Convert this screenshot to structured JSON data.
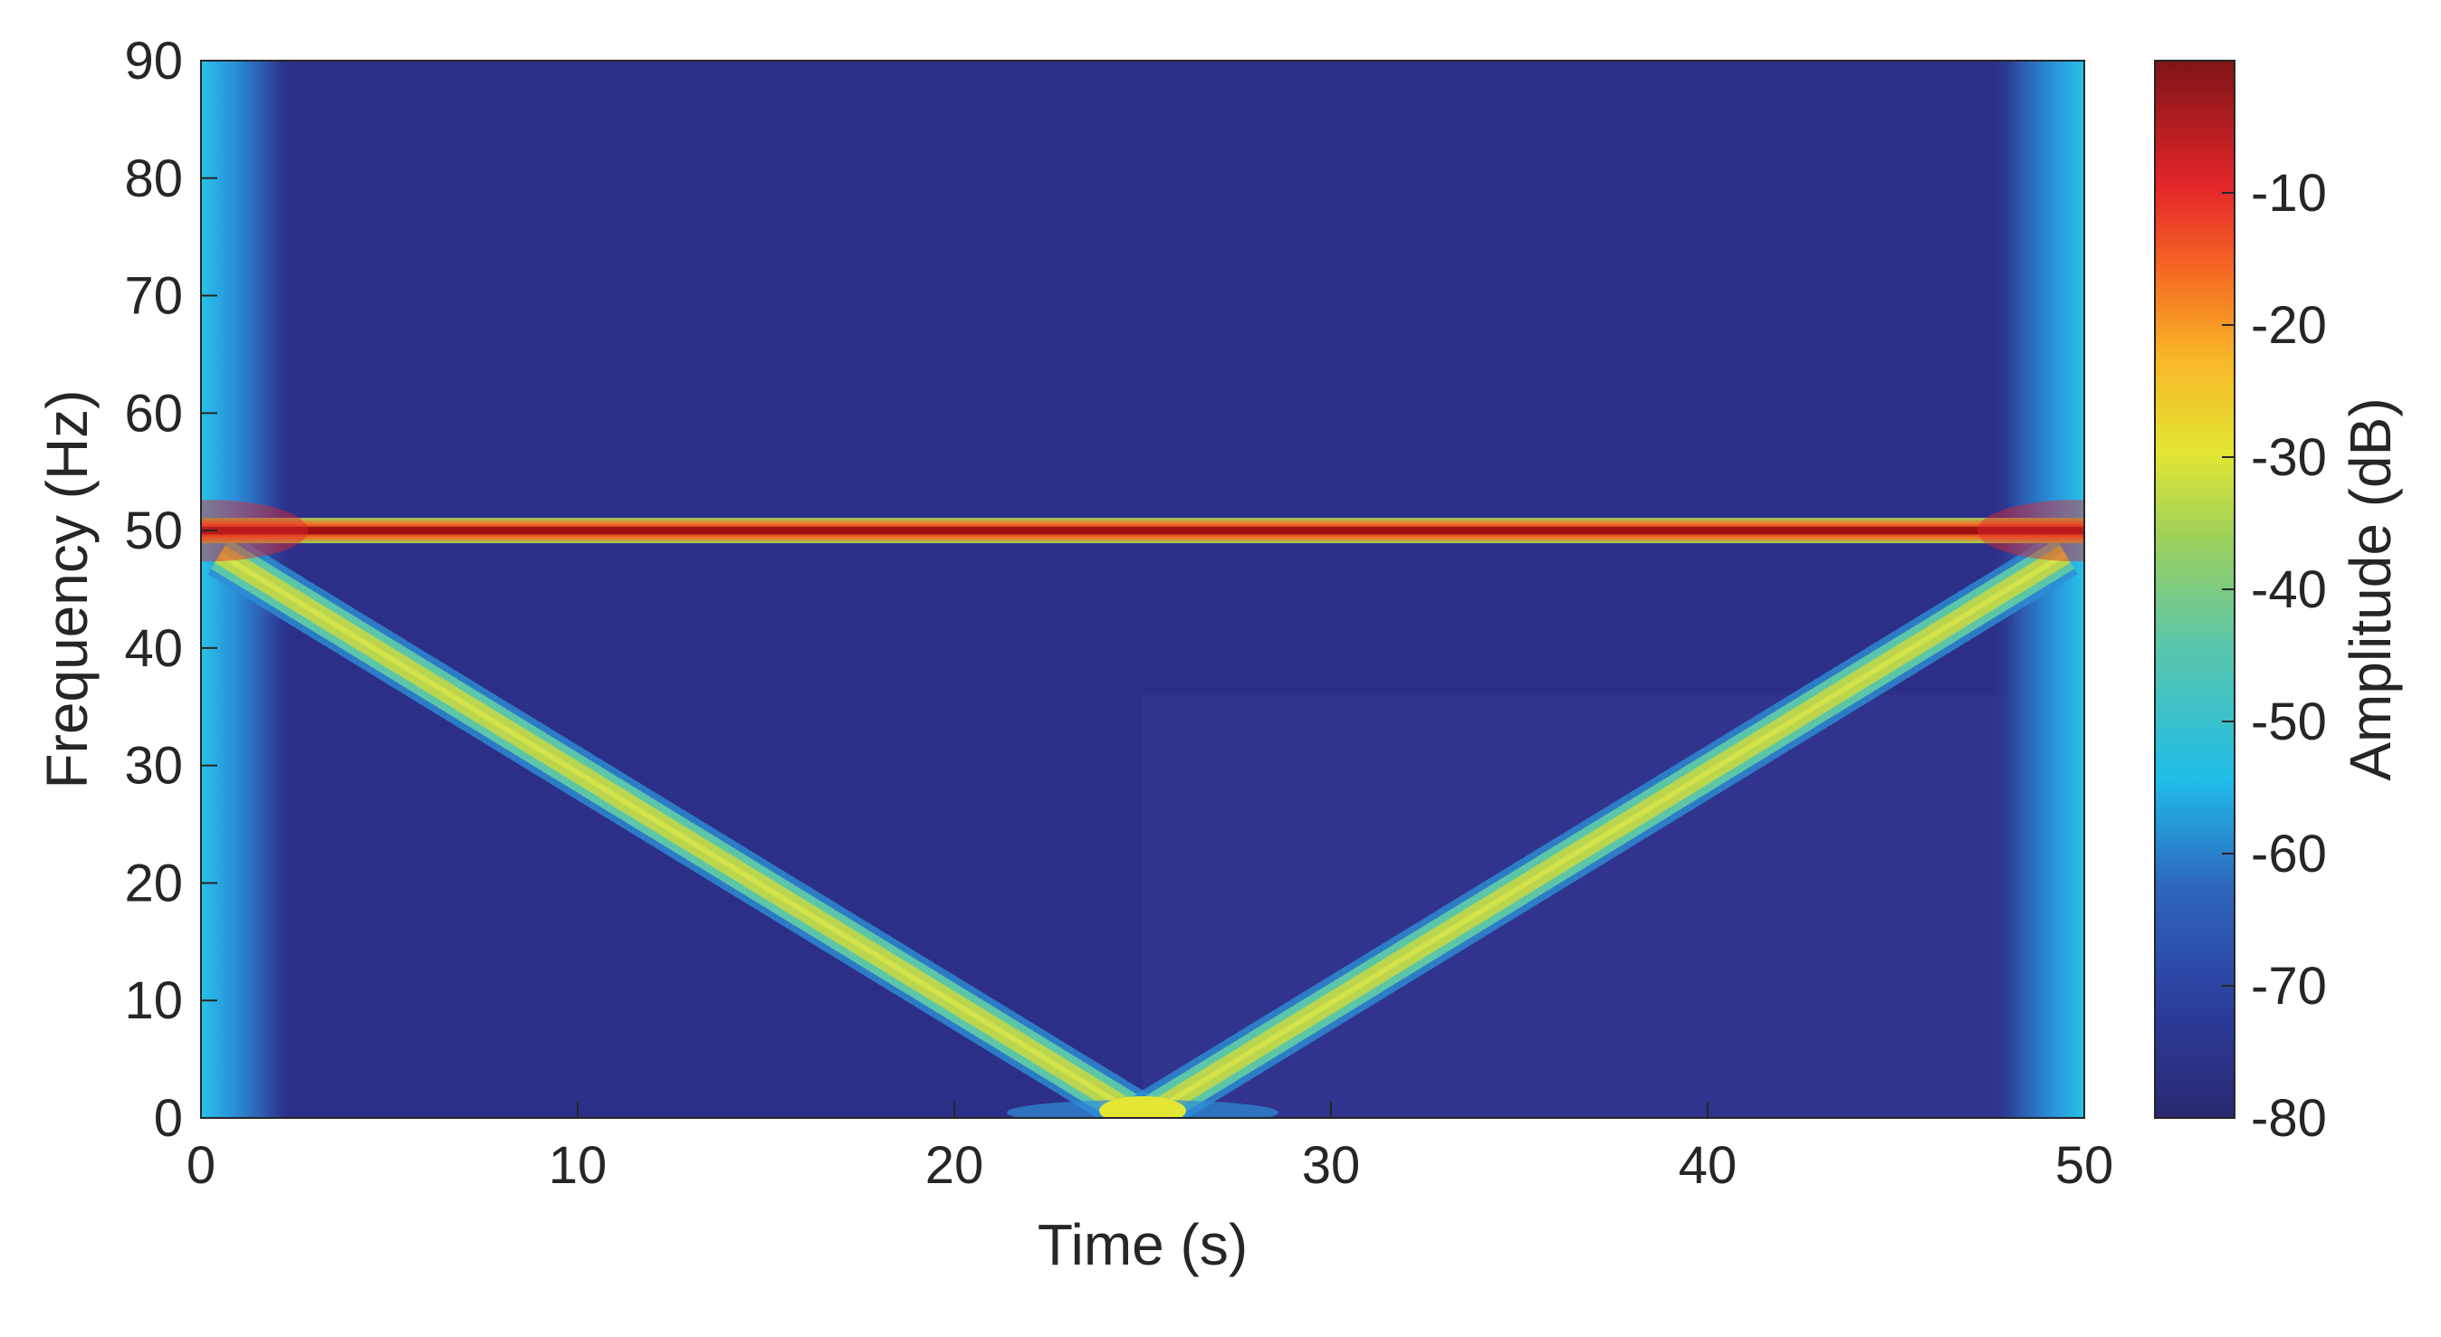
{
  "chart_data": {
    "type": "heatmap",
    "title": "",
    "xlabel": "Time (s)",
    "ylabel": "Frequency (Hz)",
    "xlim": [
      0,
      50
    ],
    "ylim": [
      0,
      90
    ],
    "xticks": [
      0,
      10,
      20,
      30,
      40,
      50
    ],
    "yticks": [
      0,
      10,
      20,
      30,
      40,
      50,
      60,
      70,
      80,
      90
    ],
    "grid": false,
    "colorbar": {
      "label": "Amplitude (dB)",
      "range": [
        -80,
        0
      ],
      "ticks": [
        -10,
        -20,
        -30,
        -40,
        -50,
        -60,
        -70,
        -80
      ],
      "colormap": "jet",
      "position": "right"
    },
    "background_level_db": -75,
    "components": [
      {
        "kind": "constant",
        "t": [
          0,
          50
        ],
        "f": [
          50,
          50
        ],
        "level_db": -3
      },
      {
        "kind": "chirp",
        "t": [
          0.5,
          25
        ],
        "f": [
          48,
          0
        ],
        "level_db": -37
      },
      {
        "kind": "chirp",
        "t": [
          25,
          49.5
        ],
        "f": [
          0,
          48
        ],
        "level_db": -37
      }
    ],
    "edge_effects": [
      {
        "t": [
          0,
          2.5
        ],
        "level_db": -58
      },
      {
        "t": [
          47.5,
          50
        ],
        "level_db": -58
      }
    ],
    "colors": {
      "background": "#2c2f88",
      "chirp": "#b9d64e",
      "tone": "#9b0f0f",
      "edge": "#28c3e8"
    }
  }
}
